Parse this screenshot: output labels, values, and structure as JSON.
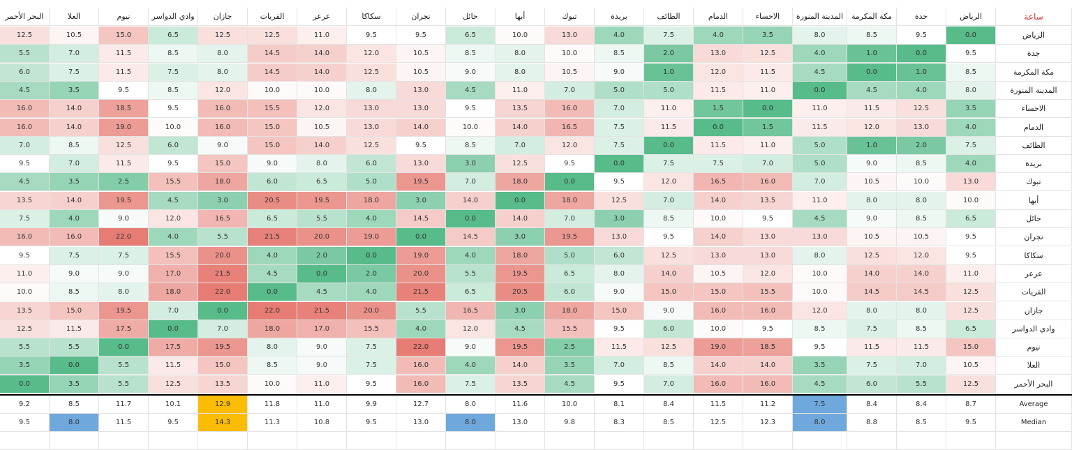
{
  "corner_label": "ساعة",
  "columns": [
    "البحر الأحمر",
    "العلا",
    "نيوم",
    "وادي الدواسر",
    "جازان",
    "القريات",
    "عرعر",
    "سكاكا",
    "نجران",
    "حائل",
    "أبها",
    "تبوك",
    "بريدة",
    "الطائف",
    "الدمام",
    "الاحساء",
    "المدينة المنورة",
    "مكة المكرمة",
    "جدة",
    "الرياض"
  ],
  "rows": [
    {
      "label": "الرياض",
      "values": [
        "12.5",
        "10.5",
        "15.0",
        "6.5",
        "12.5",
        "12.5",
        "11.0",
        "9.5",
        "9.5",
        "6.5",
        "10.0",
        "13.0",
        "4.0",
        "7.5",
        "4.0",
        "3.5",
        "8.0",
        "8.5",
        "9.5",
        "0.0"
      ]
    },
    {
      "label": "جدة",
      "values": [
        "5.5",
        "7.0",
        "11.5",
        "8.5",
        "8.0",
        "14.5",
        "14.0",
        "12.0",
        "10.5",
        "8.5",
        "8.0",
        "10.0",
        "8.5",
        "2.0",
        "13.0",
        "12.5",
        "4.0",
        "1.0",
        "0.0",
        "9.5"
      ]
    },
    {
      "label": "مكة المكرمة",
      "values": [
        "6.0",
        "7.5",
        "11.5",
        "7.5",
        "8.0",
        "14.5",
        "14.0",
        "12.5",
        "10.5",
        "9.0",
        "8.0",
        "10.5",
        "9.0",
        "1.0",
        "12.0",
        "11.5",
        "4.5",
        "0.0",
        "1.0",
        "8.5"
      ]
    },
    {
      "label": "المدينة المنورة",
      "values": [
        "4.5",
        "3.5",
        "9.5",
        "8.5",
        "12.0",
        "10.0",
        "10.0",
        "8.0",
        "13.0",
        "4.5",
        "11.0",
        "7.0",
        "5.0",
        "5.0",
        "11.5",
        "11.0",
        "0.0",
        "4.5",
        "4.0",
        "8.0"
      ]
    },
    {
      "label": "الاحساء",
      "values": [
        "16.0",
        "14.0",
        "18.5",
        "9.5",
        "16.0",
        "15.5",
        "12.0",
        "13.0",
        "13.0",
        "9.5",
        "13.5",
        "16.0",
        "7.0",
        "11.0",
        "1.5",
        "0.0",
        "11.0",
        "11.5",
        "12.5",
        "3.5"
      ]
    },
    {
      "label": "الدمام",
      "values": [
        "16.0",
        "14.0",
        "19.0",
        "10.0",
        "16.0",
        "15.0",
        "10.5",
        "13.0",
        "14.0",
        "10.0",
        "14.0",
        "16.5",
        "7.5",
        "11.5",
        "0.0",
        "1.5",
        "11.5",
        "12.0",
        "13.0",
        "4.0"
      ]
    },
    {
      "label": "الطائف",
      "values": [
        "7.0",
        "8.5",
        "12.5",
        "6.0",
        "9.0",
        "15.0",
        "14.0",
        "12.5",
        "9.5",
        "8.5",
        "7.0",
        "12.0",
        "7.5",
        "0.0",
        "11.5",
        "11.0",
        "5.0",
        "1.0",
        "2.0",
        "7.5"
      ]
    },
    {
      "label": "بريدة",
      "values": [
        "9.5",
        "7.0",
        "11.5",
        "9.5",
        "15.0",
        "9.0",
        "8.0",
        "6.0",
        "13.0",
        "3.0",
        "12.5",
        "9.5",
        "0.0",
        "7.5",
        "7.5",
        "7.0",
        "5.0",
        "9.0",
        "8.5",
        "4.0"
      ]
    },
    {
      "label": "تبوك",
      "values": [
        "4.5",
        "3.5",
        "2.5",
        "15.5",
        "18.0",
        "6.0",
        "6.5",
        "5.0",
        "19.5",
        "7.0",
        "18.0",
        "0.0",
        "9.5",
        "12.0",
        "16.5",
        "16.0",
        "7.0",
        "10.5",
        "10.0",
        "13.0"
      ]
    },
    {
      "label": "أبها",
      "values": [
        "13.5",
        "14.0",
        "19.5",
        "4.5",
        "3.0",
        "20.5",
        "19.5",
        "18.0",
        "3.0",
        "14.0",
        "0.0",
        "18.0",
        "12.5",
        "7.0",
        "14.0",
        "13.5",
        "11.0",
        "8.0",
        "8.0",
        "10.0"
      ]
    },
    {
      "label": "حائل",
      "values": [
        "7.5",
        "4.0",
        "9.0",
        "12.0",
        "16.5",
        "6.5",
        "5.5",
        "4.0",
        "14.5",
        "0.0",
        "14.0",
        "7.0",
        "3.0",
        "8.5",
        "10.0",
        "9.5",
        "4.5",
        "9.0",
        "8.5",
        "6.5"
      ]
    },
    {
      "label": "نجران",
      "values": [
        "16.0",
        "16.0",
        "22.0",
        "4.0",
        "5.5",
        "21.5",
        "20.0",
        "19.0",
        "0.0",
        "14.5",
        "3.0",
        "19.5",
        "13.0",
        "9.5",
        "14.0",
        "13.0",
        "13.0",
        "10.5",
        "10.5",
        "9.5"
      ]
    },
    {
      "label": "سكاكا",
      "values": [
        "9.5",
        "7.5",
        "7.5",
        "15.5",
        "20.0",
        "4.0",
        "2.0",
        "0.0",
        "19.0",
        "4.0",
        "18.0",
        "5.0",
        "6.0",
        "12.5",
        "13.0",
        "13.0",
        "8.0",
        "12.5",
        "12.0",
        "9.5"
      ]
    },
    {
      "label": "عرعر",
      "values": [
        "11.0",
        "9.0",
        "9.0",
        "17.0",
        "21.5",
        "4.5",
        "0.0",
        "2.0",
        "20.0",
        "5.5",
        "19.5",
        "6.5",
        "8.0",
        "14.0",
        "10.5",
        "12.0",
        "10.0",
        "14.0",
        "14.0",
        "11.0"
      ]
    },
    {
      "label": "القريات",
      "values": [
        "10.0",
        "8.5",
        "8.0",
        "18.0",
        "22.0",
        "0.0",
        "4.5",
        "4.0",
        "21.5",
        "6.5",
        "20.5",
        "6.0",
        "9.0",
        "15.0",
        "15.0",
        "15.5",
        "10.0",
        "14.5",
        "14.5",
        "12.5"
      ]
    },
    {
      "label": "جازان",
      "values": [
        "13.5",
        "15.0",
        "19.5",
        "7.0",
        "0.0",
        "22.0",
        "21.5",
        "20.0",
        "5.5",
        "16.5",
        "3.0",
        "18.0",
        "15.0",
        "9.0",
        "16.0",
        "16.0",
        "12.0",
        "8.0",
        "8.0",
        "12.5"
      ]
    },
    {
      "label": "وادي الدواسر",
      "values": [
        "12.5",
        "11.5",
        "17.5",
        "0.0",
        "7.0",
        "18.0",
        "17.0",
        "15.5",
        "4.0",
        "12.0",
        "4.5",
        "15.5",
        "9.5",
        "6.0",
        "10.0",
        "9.5",
        "8.5",
        "7.5",
        "8.5",
        "6.5"
      ]
    },
    {
      "label": "نيوم",
      "values": [
        "5.5",
        "5.5",
        "0.0",
        "17.5",
        "19.5",
        "8.0",
        "9.0",
        "7.5",
        "22.0",
        "9.0",
        "19.5",
        "2.5",
        "11.5",
        "12.5",
        "19.0",
        "18.5",
        "9.5",
        "11.5",
        "11.5",
        "15.0"
      ]
    },
    {
      "label": "العلا",
      "values": [
        "3.5",
        "0.0",
        "5.5",
        "11.5",
        "15.0",
        "8.5",
        "9.0",
        "7.5",
        "16.0",
        "4.0",
        "14.0",
        "3.5",
        "7.0",
        "8.5",
        "14.0",
        "14.0",
        "3.5",
        "7.5",
        "7.0",
        "10.5"
      ]
    },
    {
      "label": "البحر الأحمر",
      "values": [
        "0.0",
        "3.5",
        "5.5",
        "12.5",
        "13.5",
        "10.0",
        "11.0",
        "9.5",
        "16.0",
        "7.5",
        "13.5",
        "4.5",
        "9.5",
        "7.0",
        "16.0",
        "16.0",
        "4.5",
        "6.0",
        "5.5",
        "12.5"
      ]
    }
  ],
  "stats": [
    {
      "label": "Average",
      "values": [
        "9.2",
        "8.5",
        "11.7",
        "10.1",
        "12.9",
        "11.8",
        "11.0",
        "9.9",
        "12.7",
        "8.0",
        "11.6",
        "10.0",
        "8.1",
        "8.4",
        "11.5",
        "11.2",
        "7.5",
        "8.4",
        "8.4",
        "8.7"
      ],
      "highlights": {
        "4": "#fbbc04",
        "16": "#6fa8dc"
      }
    },
    {
      "label": "Median",
      "values": [
        "9.5",
        "8.0",
        "11.5",
        "9.5",
        "14.3",
        "11.3",
        "10.8",
        "9.5",
        "13.0",
        "8.0",
        "13.0",
        "9.8",
        "8.3",
        "8.5",
        "12.5",
        "12.3",
        "8.0",
        "8.8",
        "8.5",
        "9.5"
      ],
      "highlights": {
        "1": "#6fa8dc",
        "4": "#fbbc04",
        "9": "#6fa8dc",
        "16": "#6fa8dc"
      }
    }
  ],
  "colors": {
    "low": "#57bb8a",
    "mid": "#ffffff",
    "high": "#e67c73",
    "corner_text": "#d32f2f"
  }
}
